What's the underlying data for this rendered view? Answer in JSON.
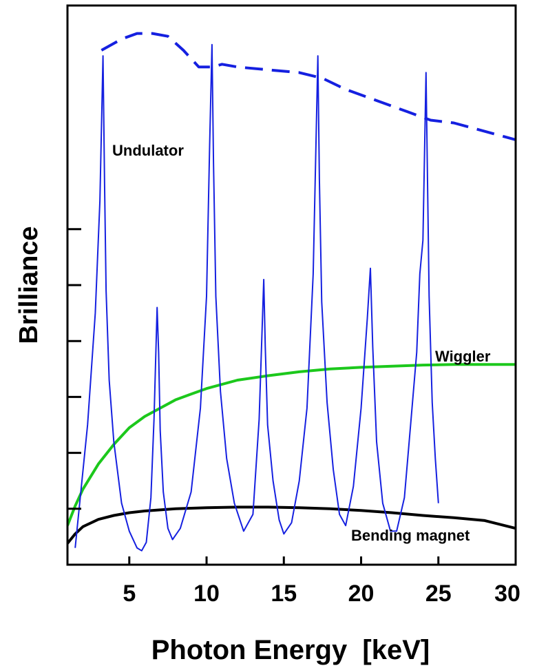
{
  "chart_data": {
    "type": "line",
    "title": "",
    "xlabel": "Photon Energy  [keV]",
    "ylabel": "Brilliance",
    "xlim": [
      1,
      30
    ],
    "ylim": [
      0,
      10
    ],
    "x_ticks": [
      5,
      10,
      15,
      20,
      25,
      30
    ],
    "y_ticks_labeled": false,
    "y_ticks": [
      1,
      2,
      3,
      4,
      5,
      6
    ],
    "grid": false,
    "series": [
      {
        "name": "Undulator",
        "color": "#1520e0",
        "style": "solid",
        "x": [
          1.5,
          2.3,
          2.8,
          3.1,
          3.3,
          3.4,
          3.5,
          3.7,
          4.0,
          4.5,
          5.0,
          5.5,
          5.8,
          6.1,
          6.4,
          6.6,
          6.8,
          6.9,
          7.0,
          7.2,
          7.5,
          7.8,
          8.3,
          9.0,
          9.6,
          10.0,
          10.2,
          10.35,
          10.45,
          10.6,
          10.9,
          11.3,
          11.8,
          12.4,
          13.0,
          13.4,
          13.7,
          13.8,
          13.95,
          14.3,
          14.7,
          15.0,
          15.5,
          16.0,
          16.5,
          16.9,
          17.2,
          17.3,
          17.45,
          17.8,
          18.2,
          18.6,
          19.0,
          19.5,
          20.0,
          20.4,
          20.6,
          20.75,
          21.0,
          21.4,
          21.9,
          22.3,
          22.8,
          23.2,
          23.6,
          23.8,
          24.0,
          24.2,
          24.4,
          24.6,
          24.8,
          25.0
        ],
        "values": [
          0.3,
          2.5,
          4.5,
          6.5,
          9.1,
          6.8,
          4.9,
          3.3,
          2.2,
          1.1,
          0.6,
          0.3,
          0.25,
          0.4,
          1.2,
          2.6,
          4.6,
          3.8,
          2.4,
          1.3,
          0.65,
          0.45,
          0.65,
          1.3,
          2.8,
          4.8,
          7.5,
          9.3,
          7.2,
          4.8,
          3.1,
          1.9,
          1.1,
          0.6,
          0.9,
          2.6,
          5.1,
          3.9,
          2.5,
          1.5,
          0.8,
          0.55,
          0.75,
          1.5,
          2.8,
          5.2,
          9.1,
          6.9,
          4.7,
          2.9,
          1.7,
          0.9,
          0.7,
          1.4,
          2.8,
          4.4,
          5.3,
          3.9,
          2.2,
          1.1,
          0.6,
          0.6,
          1.2,
          2.5,
          3.8,
          5.2,
          5.8,
          8.8,
          4.8,
          2.9,
          1.9,
          1.1
        ]
      },
      {
        "name": "",
        "color": "#1520e0",
        "style": "dashed",
        "x": [
          3.2,
          4.5,
          5.5,
          6.5,
          7.5,
          8.5,
          9.5,
          10.4,
          11.0,
          12.0,
          14.0,
          16.0,
          17.5,
          19.0,
          21.0,
          23.0,
          24.5,
          26.0,
          28.0,
          30.0
        ],
        "values": [
          9.2,
          9.4,
          9.5,
          9.5,
          9.45,
          9.2,
          8.9,
          8.9,
          8.95,
          8.9,
          8.85,
          8.8,
          8.7,
          8.5,
          8.3,
          8.1,
          7.95,
          7.9,
          7.75,
          7.6
        ]
      },
      {
        "name": "Wiggler",
        "color": "#1cc81c",
        "style": "solid",
        "x": [
          1.0,
          1.5,
          2.0,
          3.0,
          4.0,
          5.0,
          6.0,
          7.0,
          8.0,
          9.0,
          10.0,
          12.0,
          14.0,
          16.0,
          18.0,
          20.0,
          22.0,
          24.0,
          26.0,
          28.0,
          30.0
        ],
        "values": [
          0.7,
          1.05,
          1.35,
          1.8,
          2.15,
          2.45,
          2.65,
          2.8,
          2.95,
          3.05,
          3.15,
          3.3,
          3.38,
          3.45,
          3.5,
          3.53,
          3.55,
          3.57,
          3.58,
          3.58,
          3.58
        ]
      },
      {
        "name": "Bending magnet",
        "color": "#000000",
        "style": "solid",
        "x": [
          1.0,
          1.5,
          2.0,
          3.0,
          4.0,
          5.0,
          6.0,
          7.0,
          8.0,
          10.0,
          12.0,
          14.0,
          16.0,
          18.0,
          20.0,
          22.0,
          24.0,
          26.0,
          28.0,
          30.0
        ],
        "values": [
          0.38,
          0.55,
          0.68,
          0.81,
          0.88,
          0.93,
          0.96,
          0.98,
          1.0,
          1.02,
          1.03,
          1.03,
          1.02,
          1.0,
          0.97,
          0.93,
          0.88,
          0.84,
          0.79,
          0.65
        ]
      }
    ],
    "annotations": {
      "undulator": "Undulator",
      "wiggler": "Wiggler",
      "bending": "Bending magnet"
    }
  }
}
